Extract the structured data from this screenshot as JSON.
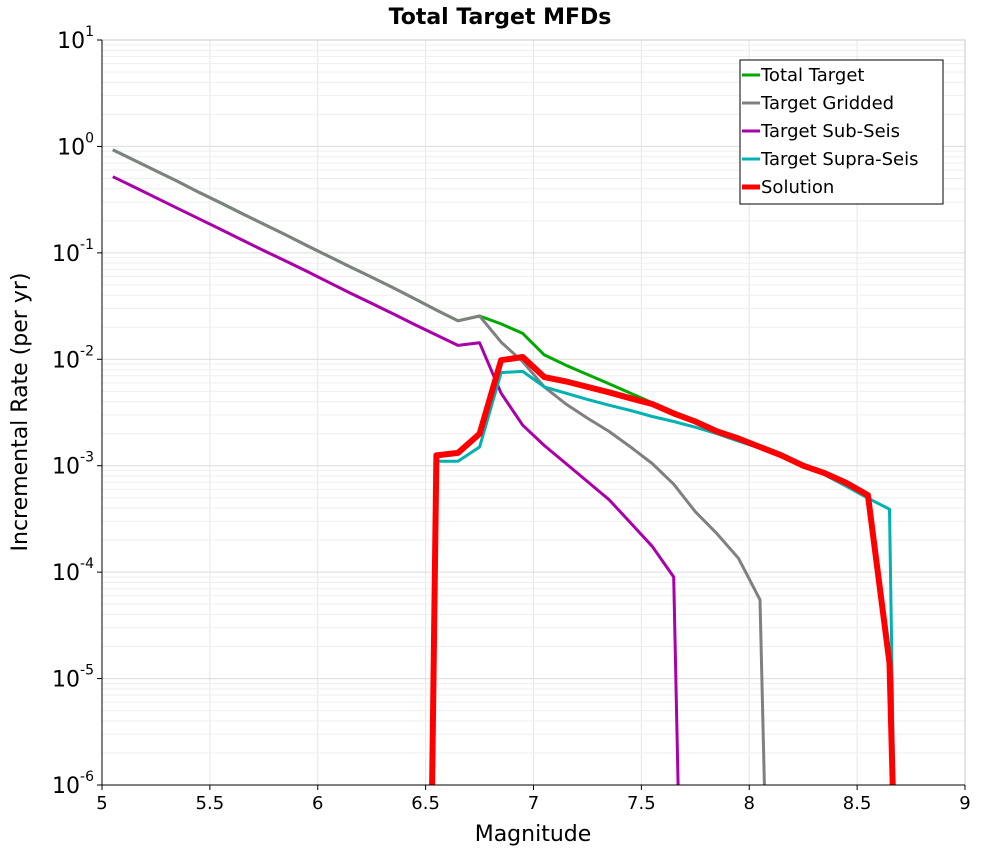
{
  "chart_data": {
    "type": "line",
    "title": "Total Target MFDs",
    "xlabel": "Magnitude",
    "ylabel": "Incremental Rate (per yr)",
    "xlim": [
      5,
      9
    ],
    "ylim": [
      1e-06,
      10
    ],
    "yscale": "log",
    "grid": true,
    "legend_position": "top-right",
    "x_ticks": [
      "5",
      "5.5",
      "6",
      "6.5",
      "7",
      "7.5",
      "8",
      "8.5",
      "9"
    ],
    "y_ticks": [
      {
        "base": "10",
        "exp": "1"
      },
      {
        "base": "10",
        "exp": "0"
      },
      {
        "base": "10",
        "exp": "-1"
      },
      {
        "base": "10",
        "exp": "-2"
      },
      {
        "base": "10",
        "exp": "-3"
      },
      {
        "base": "10",
        "exp": "-4"
      },
      {
        "base": "10",
        "exp": "-5"
      },
      {
        "base": "10",
        "exp": "-6"
      }
    ],
    "series": [
      {
        "name": "Total Target",
        "color": "#00aa00",
        "width": 3,
        "x": [
          5.05,
          5.15,
          5.25,
          5.35,
          5.45,
          5.55,
          5.65,
          5.75,
          5.85,
          5.95,
          6.05,
          6.15,
          6.25,
          6.35,
          6.45,
          6.55,
          6.65,
          6.75,
          6.85,
          6.95,
          7.05,
          7.15,
          7.25,
          7.35,
          7.45,
          7.55,
          7.65,
          7.75,
          7.85,
          7.95,
          8.05,
          8.15,
          8.25,
          8.35,
          8.45,
          8.55,
          8.65,
          8.67
        ],
        "y": [
          0.93,
          0.74,
          0.59,
          0.47,
          0.37,
          0.295,
          0.234,
          0.186,
          0.148,
          0.117,
          0.093,
          0.074,
          0.059,
          0.047,
          0.037,
          0.029,
          0.023,
          0.0255,
          0.0215,
          0.0175,
          0.011,
          0.0088,
          0.0072,
          0.0059,
          0.0048,
          0.0039,
          0.0031,
          0.0026,
          0.0021,
          0.0018,
          0.0015,
          0.00125,
          0.00102,
          0.00084,
          0.00069,
          0.00053,
          1.2e-05,
          1e-06
        ]
      },
      {
        "name": "Target Gridded",
        "color": "#808080",
        "width": 3,
        "x": [
          5.05,
          5.15,
          5.25,
          5.35,
          5.45,
          5.55,
          5.65,
          5.75,
          5.85,
          5.95,
          6.05,
          6.15,
          6.25,
          6.35,
          6.45,
          6.55,
          6.65,
          6.75,
          6.85,
          6.95,
          7.05,
          7.15,
          7.25,
          7.35,
          7.45,
          7.55,
          7.65,
          7.75,
          7.85,
          7.95,
          8.05,
          8.07
        ],
        "y": [
          0.93,
          0.74,
          0.59,
          0.47,
          0.37,
          0.295,
          0.234,
          0.186,
          0.148,
          0.117,
          0.093,
          0.074,
          0.059,
          0.047,
          0.037,
          0.029,
          0.023,
          0.0255,
          0.0145,
          0.0095,
          0.0055,
          0.0038,
          0.0028,
          0.0021,
          0.0015,
          0.00105,
          0.00067,
          0.00037,
          0.00023,
          0.000135,
          5.5e-05,
          1e-06
        ]
      },
      {
        "name": "Target Sub-Seis",
        "color": "#aa00aa",
        "width": 3,
        "x": [
          5.05,
          5.15,
          5.25,
          5.35,
          5.45,
          5.55,
          5.65,
          5.75,
          5.85,
          5.95,
          6.05,
          6.15,
          6.25,
          6.35,
          6.45,
          6.55,
          6.65,
          6.75,
          6.85,
          6.95,
          7.05,
          7.15,
          7.25,
          7.35,
          7.45,
          7.55,
          7.65,
          7.67
        ],
        "y": [
          0.52,
          0.415,
          0.33,
          0.262,
          0.209,
          0.166,
          0.132,
          0.105,
          0.084,
          0.067,
          0.053,
          0.042,
          0.0335,
          0.0267,
          0.0212,
          0.0169,
          0.0135,
          0.0143,
          0.0048,
          0.0024,
          0.00155,
          0.00105,
          0.00071,
          0.00048,
          0.00029,
          0.000175,
          9e-05,
          1e-06
        ]
      },
      {
        "name": "Target Supra-Seis",
        "color": "#00b2b2",
        "width": 3,
        "x": [
          6.535,
          6.55,
          6.65,
          6.75,
          6.85,
          6.95,
          7.05,
          7.15,
          7.25,
          7.35,
          7.45,
          7.55,
          7.65,
          7.75,
          7.85,
          7.95,
          8.05,
          8.15,
          8.25,
          8.35,
          8.45,
          8.55,
          8.65,
          8.67
        ],
        "y": [
          1e-06,
          0.0011,
          0.0011,
          0.0015,
          0.0075,
          0.0077,
          0.0055,
          0.0048,
          0.0042,
          0.0037,
          0.0033,
          0.0029,
          0.0026,
          0.0023,
          0.002,
          0.0017,
          0.00146,
          0.00122,
          0.00101,
          0.00082,
          0.00064,
          0.000495,
          0.00039,
          1e-06
        ]
      },
      {
        "name": "Solution",
        "color": "#ff0000",
        "width": 6,
        "x": [
          6.53,
          6.55,
          6.65,
          6.75,
          6.85,
          6.95,
          7.05,
          7.15,
          7.25,
          7.35,
          7.45,
          7.55,
          7.65,
          7.75,
          7.85,
          7.95,
          8.05,
          8.15,
          8.25,
          8.35,
          8.45,
          8.55,
          8.65,
          8.665
        ],
        "y": [
          1e-06,
          0.00125,
          0.00132,
          0.002,
          0.0098,
          0.0105,
          0.0068,
          0.0062,
          0.0055,
          0.0049,
          0.0043,
          0.0038,
          0.0031,
          0.0026,
          0.0021,
          0.0018,
          0.0015,
          0.00125,
          0.001,
          0.00085,
          0.00069,
          0.00053,
          1.4e-05,
          1e-06
        ]
      }
    ]
  }
}
